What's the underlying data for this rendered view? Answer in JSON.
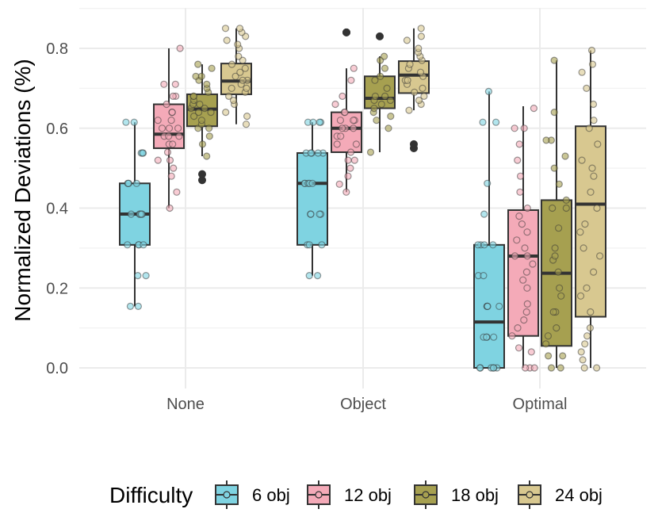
{
  "chart_data": {
    "type": "box",
    "title": "",
    "xlabel": "",
    "ylabel": "Normalized Deviations (%)",
    "ylim": [
      -0.05,
      0.9
    ],
    "yticks": [
      0.0,
      0.2,
      0.4,
      0.6,
      0.8
    ],
    "ytick_labels": [
      "0.0",
      "0.2",
      "0.4",
      "0.6",
      "0.8"
    ],
    "categories": [
      "None",
      "Object",
      "Optimal"
    ],
    "grid": true,
    "legend": {
      "title": "Difficulty",
      "position": "bottom"
    },
    "series": [
      {
        "name": "6 obj",
        "color": "#7fd3e1",
        "boxes": [
          {
            "category": "None",
            "whisker_low": 0.154,
            "q1": 0.308,
            "median": 0.385,
            "q3": 0.462,
            "whisker_high": 0.615,
            "outliers": [],
            "points": [
              0.154,
              0.154,
              0.231,
              0.231,
              0.308,
              0.308,
              0.308,
              0.308,
              0.385,
              0.385,
              0.385,
              0.385,
              0.385,
              0.462,
              0.462,
              0.462,
              0.462,
              0.538,
              0.538,
              0.538,
              0.615,
              0.615
            ]
          },
          {
            "category": "Object",
            "whisker_low": 0.231,
            "q1": 0.308,
            "median": 0.462,
            "q3": 0.538,
            "whisker_high": 0.615,
            "outliers": [],
            "points": [
              0.231,
              0.231,
              0.308,
              0.308,
              0.308,
              0.385,
              0.385,
              0.385,
              0.385,
              0.462,
              0.462,
              0.462,
              0.462,
              0.462,
              0.538,
              0.538,
              0.538,
              0.538,
              0.538,
              0.615,
              0.615,
              0.615,
              0.615
            ]
          },
          {
            "category": "Optimal",
            "whisker_low": 0.0,
            "q1": 0.0,
            "median": 0.115,
            "q3": 0.308,
            "whisker_high": 0.692,
            "outliers": [],
            "points": [
              0.0,
              0.0,
              0.0,
              0.0,
              0.0,
              0.0,
              0.077,
              0.077,
              0.077,
              0.077,
              0.154,
              0.154,
              0.154,
              0.154,
              0.231,
              0.231,
              0.308,
              0.308,
              0.308,
              0.308,
              0.385,
              0.462,
              0.615,
              0.615,
              0.692
            ]
          }
        ]
      },
      {
        "name": "12 obj",
        "color": "#f4aab8",
        "boxes": [
          {
            "category": "None",
            "whisker_low": 0.4,
            "q1": 0.55,
            "median": 0.585,
            "q3": 0.66,
            "whisker_high": 0.8,
            "outliers": [],
            "points": [
              0.4,
              0.44,
              0.48,
              0.5,
              0.52,
              0.52,
              0.54,
              0.56,
              0.56,
              0.58,
              0.58,
              0.58,
              0.6,
              0.6,
              0.6,
              0.62,
              0.62,
              0.64,
              0.64,
              0.66,
              0.68,
              0.68,
              0.71,
              0.71,
              0.8
            ]
          },
          {
            "category": "Object",
            "whisker_low": 0.44,
            "q1": 0.54,
            "median": 0.6,
            "q3": 0.64,
            "whisker_high": 0.75,
            "outliers": [
              0.84,
              0.84
            ],
            "points": [
              0.44,
              0.46,
              0.48,
              0.5,
              0.52,
              0.52,
              0.54,
              0.56,
              0.56,
              0.58,
              0.58,
              0.6,
              0.6,
              0.6,
              0.62,
              0.62,
              0.62,
              0.64,
              0.64,
              0.66,
              0.68,
              0.72,
              0.75
            ]
          },
          {
            "category": "Optimal",
            "whisker_low": 0.0,
            "q1": 0.08,
            "median": 0.28,
            "q3": 0.395,
            "whisker_high": 0.655,
            "outliers": [],
            "points": [
              0.0,
              0.0,
              0.0,
              0.04,
              0.05,
              0.08,
              0.1,
              0.12,
              0.14,
              0.16,
              0.2,
              0.22,
              0.24,
              0.26,
              0.28,
              0.28,
              0.3,
              0.32,
              0.34,
              0.36,
              0.38,
              0.4,
              0.44,
              0.48,
              0.52,
              0.56,
              0.6,
              0.6,
              0.65
            ]
          }
        ]
      },
      {
        "name": "18 obj",
        "color": "#a6a050",
        "boxes": [
          {
            "category": "None",
            "whisker_low": 0.53,
            "q1": 0.605,
            "median": 0.648,
            "q3": 0.685,
            "whisker_high": 0.76,
            "outliers": [
              0.47,
              0.485
            ],
            "points": [
              0.53,
              0.56,
              0.58,
              0.6,
              0.6,
              0.61,
              0.62,
              0.63,
              0.64,
              0.64,
              0.65,
              0.65,
              0.66,
              0.66,
              0.67,
              0.68,
              0.68,
              0.69,
              0.7,
              0.71,
              0.72,
              0.73,
              0.73,
              0.75,
              0.76
            ]
          },
          {
            "category": "Object",
            "whisker_low": 0.54,
            "q1": 0.65,
            "median": 0.675,
            "q3": 0.73,
            "whisker_high": 0.78,
            "outliers": [
              0.83
            ],
            "points": [
              0.54,
              0.6,
              0.62,
              0.63,
              0.64,
              0.65,
              0.66,
              0.67,
              0.67,
              0.68,
              0.68,
              0.7,
              0.72,
              0.73,
              0.75,
              0.77,
              0.78
            ]
          },
          {
            "category": "Optimal",
            "whisker_low": 0.0,
            "q1": 0.055,
            "median": 0.237,
            "q3": 0.42,
            "whisker_high": 0.77,
            "outliers": [],
            "points": [
              0.0,
              0.0,
              0.03,
              0.03,
              0.06,
              0.08,
              0.1,
              0.14,
              0.14,
              0.18,
              0.2,
              0.24,
              0.27,
              0.28,
              0.3,
              0.35,
              0.4,
              0.4,
              0.42,
              0.46,
              0.5,
              0.53,
              0.57,
              0.57,
              0.64,
              0.77
            ]
          }
        ]
      },
      {
        "name": "24  obj",
        "color": "#d8c890",
        "boxes": [
          {
            "category": "None",
            "whisker_low": 0.61,
            "q1": 0.685,
            "median": 0.718,
            "q3": 0.762,
            "whisker_high": 0.85,
            "outliers": [],
            "points": [
              0.61,
              0.63,
              0.64,
              0.66,
              0.67,
              0.68,
              0.69,
              0.7,
              0.7,
              0.71,
              0.72,
              0.72,
              0.73,
              0.74,
              0.75,
              0.76,
              0.77,
              0.78,
              0.8,
              0.81,
              0.82,
              0.83,
              0.84,
              0.85,
              0.85
            ]
          },
          {
            "category": "Object",
            "whisker_low": 0.645,
            "q1": 0.688,
            "median": 0.733,
            "q3": 0.768,
            "whisker_high": 0.85,
            "outliers": [
              0.55,
              0.56
            ],
            "points": [
              0.645,
              0.66,
              0.67,
              0.68,
              0.69,
              0.7,
              0.71,
              0.72,
              0.72,
              0.73,
              0.74,
              0.75,
              0.76,
              0.77,
              0.78,
              0.79,
              0.8,
              0.82,
              0.83,
              0.85
            ]
          },
          {
            "category": "Optimal",
            "whisker_low": 0.0,
            "q1": 0.128,
            "median": 0.41,
            "q3": 0.605,
            "whisker_high": 0.795,
            "outliers": [],
            "points": [
              0.0,
              0.0,
              0.02,
              0.04,
              0.06,
              0.08,
              0.1,
              0.14,
              0.18,
              0.2,
              0.24,
              0.28,
              0.3,
              0.34,
              0.36,
              0.4,
              0.44,
              0.48,
              0.5,
              0.52,
              0.56,
              0.6,
              0.62,
              0.66,
              0.7,
              0.74,
              0.76,
              0.795
            ]
          }
        ]
      }
    ]
  }
}
